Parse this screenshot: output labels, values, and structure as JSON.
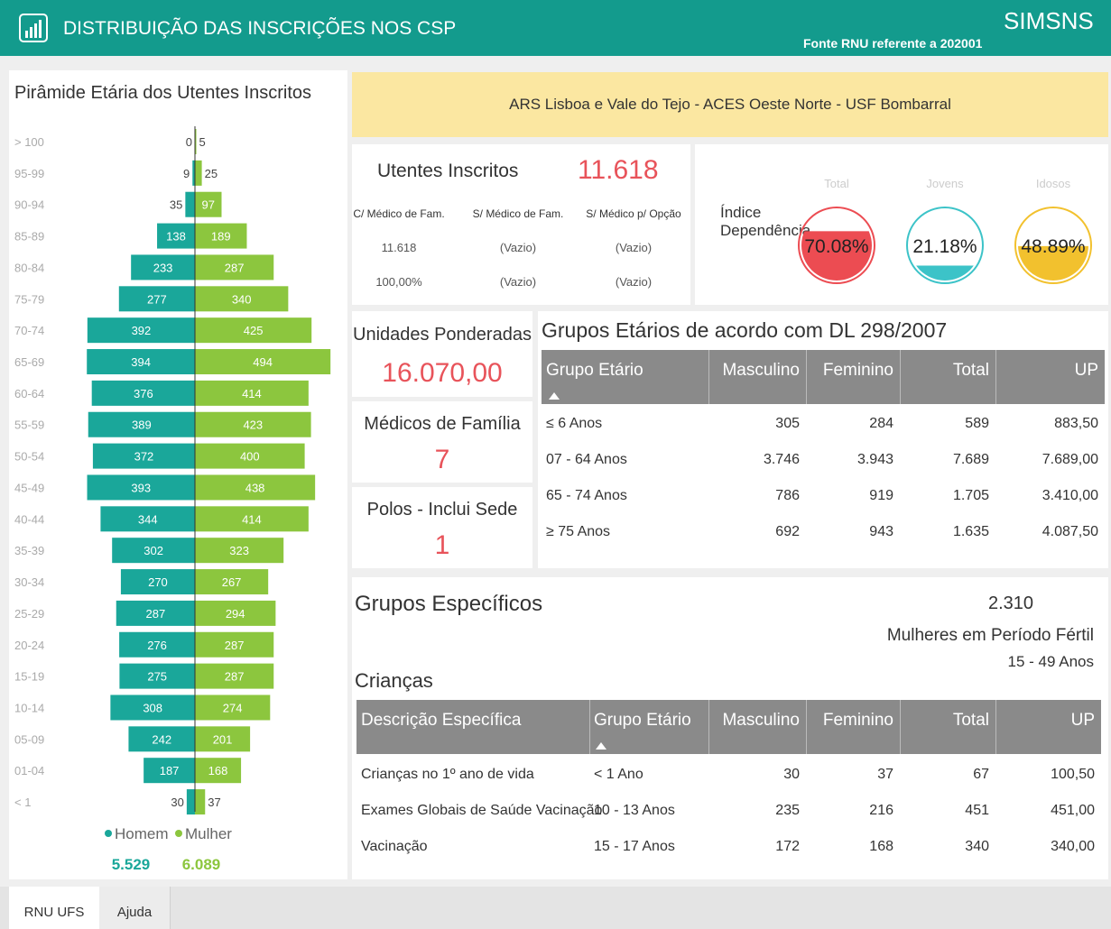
{
  "header": {
    "title": "DISTRIBUIÇÃO DAS INSCRIÇÕES NOS CSP",
    "source": "Fonte RNU referente a 202001",
    "logo": "SIMSNS"
  },
  "pyramid": {
    "title": "Pirâmide Etária dos Utentes Inscritos",
    "categories": [
      "> 100",
      "95-99",
      "90-94",
      "85-89",
      "80-84",
      "75-79",
      "70-74",
      "65-69",
      "60-64",
      "55-59",
      "50-54",
      "45-49",
      "40-44",
      "35-39",
      "30-34",
      "25-29",
      "20-24",
      "15-19",
      "10-14",
      "05-09",
      "01-04",
      "< 1"
    ],
    "series": [
      {
        "name": "Homem",
        "color": "#1aa79a",
        "total": "5.529",
        "values": [
          0,
          9,
          35,
          138,
          233,
          277,
          392,
          394,
          376,
          389,
          372,
          393,
          344,
          302,
          270,
          287,
          276,
          275,
          308,
          242,
          187,
          30
        ]
      },
      {
        "name": "Mulher",
        "color": "#8cc63e",
        "total": "6.089",
        "values": [
          5,
          25,
          97,
          189,
          287,
          340,
          425,
          494,
          414,
          423,
          400,
          438,
          414,
          323,
          267,
          294,
          287,
          287,
          274,
          201,
          168,
          37
        ]
      }
    ]
  },
  "banner": "ARS Lisboa e Vale do Tejo - ACES Oeste Norte - USF Bombarral",
  "utentes": {
    "label": "Utentes Inscritos",
    "value": "11.618",
    "columns": [
      "C/ Médico de Fam.",
      "S/ Médico de Fam.",
      "S/ Médico p/ Opção"
    ],
    "rows": [
      [
        "11.618",
        "(Vazio)",
        "(Vazio)"
      ],
      [
        "100,00%",
        "(Vazio)",
        "(Vazio)"
      ]
    ]
  },
  "dependencia": {
    "label": "Índice Dependência",
    "gauges": [
      {
        "name": "Total",
        "value": 70.08,
        "label": "70.08%",
        "color": "#ec4c52"
      },
      {
        "name": "Jovens",
        "value": 21.18,
        "label": "21.18%",
        "color": "#3cc3c8"
      },
      {
        "name": "Idosos",
        "value": 48.89,
        "label": "48.89%",
        "color": "#f2c12e"
      }
    ]
  },
  "kpis": [
    {
      "label": "Unidades Ponderadas",
      "value": "16.070,00"
    },
    {
      "label": "Médicos de Família",
      "value": "7"
    },
    {
      "label": "Polos - Inclui Sede",
      "value": "1"
    }
  ],
  "grupos_etarios": {
    "title": "Grupos Etários de acordo com DL 298/2007",
    "columns": [
      "Grupo Etário",
      "Masculino",
      "Feminino",
      "Total",
      "UP"
    ],
    "rows": [
      [
        "≤ 6 Anos",
        "305",
        "284",
        "589",
        "883,50"
      ],
      [
        "07 - 64 Anos",
        "3.746",
        "3.943",
        "7.689",
        "7.689,00"
      ],
      [
        "65 - 74 Anos",
        "786",
        "919",
        "1.705",
        "3.410,00"
      ],
      [
        "≥ 75 Anos",
        "692",
        "943",
        "1.635",
        "4.087,50"
      ]
    ]
  },
  "grupos_especificos": {
    "title": "Grupos Específicos",
    "fertil_value": "2.310",
    "fertil_label": "Mulheres em Período Fértil",
    "fertil_range": "15 - 49 Anos",
    "criancas": {
      "title": "Crianças",
      "columns": [
        "Descrição Específica",
        "Grupo Etário",
        "Masculino",
        "Feminino",
        "Total",
        "UP"
      ],
      "rows": [
        [
          "Crianças no 1º ano de vida",
          "< 1 Ano",
          "30",
          "37",
          "67",
          "100,50"
        ],
        [
          "Exames Globais de Saúde Vacinação",
          "10 - 13 Anos",
          "235",
          "216",
          "451",
          "451,00"
        ],
        [
          "Vacinação",
          "15 - 17 Anos",
          "172",
          "168",
          "340",
          "340,00"
        ]
      ]
    }
  },
  "tabs": [
    "RNU UFS",
    "Ajuda"
  ]
}
